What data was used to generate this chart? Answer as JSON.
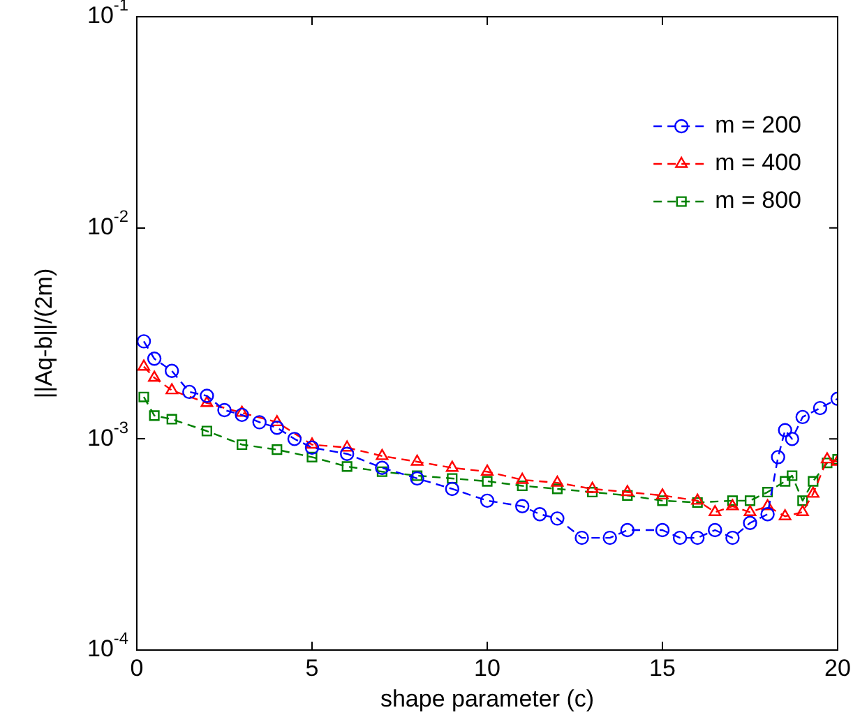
{
  "chart_data": {
    "type": "line",
    "xlabel": "shape parameter (c)",
    "ylabel": "||Aq-b||/(2m)",
    "log": "y",
    "grid": false,
    "legend": "top right",
    "line_style": "dashed",
    "xlim": [
      0,
      20
    ],
    "xticks": [
      0,
      5,
      10,
      15,
      20
    ],
    "ylim": [
      0.0001,
      0.1
    ],
    "yticks": [
      {
        "value": 0.0001,
        "label": "10$^{-4}$"
      },
      {
        "value": 0.001,
        "label": "10$^{-3}$"
      },
      {
        "value": 0.01,
        "label": "10$^{-2}$"
      },
      {
        "value": 0.1,
        "label": "10$^{-1}$"
      }
    ],
    "series": [
      {
        "name": "m = 200",
        "color": "#0000ff",
        "marker": "circle",
        "x": [
          0.2,
          0.5,
          1,
          1.5,
          2,
          2.5,
          3,
          3.5,
          4,
          4.5,
          5,
          6,
          7,
          8,
          9,
          10,
          11,
          11.5,
          12,
          12.7,
          13.5,
          14,
          15,
          15.5,
          16,
          16.5,
          17,
          17.5,
          18,
          18.3,
          18.5,
          18.7,
          19,
          19.5,
          20
        ],
        "values": [
          0.0029,
          0.0024,
          0.0021,
          0.00167,
          0.0016,
          0.00137,
          0.0013,
          0.0012,
          0.00113,
          0.001,
          0.00091,
          0.00085,
          0.00073,
          0.00065,
          0.00058,
          0.00051,
          0.00048,
          0.00044,
          0.00042,
          0.00034,
          0.00034,
          0.00037,
          0.00037,
          0.00034,
          0.00034,
          0.00037,
          0.00034,
          0.0004,
          0.00044,
          0.00082,
          0.0011,
          0.001,
          0.00127,
          0.0014,
          0.00155
        ]
      },
      {
        "name": "m = 400",
        "color": "#ff0000",
        "marker": "triangle",
        "x": [
          0.2,
          0.5,
          1,
          2,
          3,
          4,
          5,
          6,
          7,
          8,
          9,
          10,
          11,
          12,
          13,
          14,
          15,
          16,
          16.5,
          17,
          17.5,
          18,
          18.5,
          19,
          19.3,
          19.7,
          20
        ],
        "values": [
          0.0022,
          0.00195,
          0.0017,
          0.00148,
          0.00133,
          0.0012,
          0.00094,
          0.00091,
          0.00083,
          0.00078,
          0.00073,
          0.0007,
          0.00064,
          0.00062,
          0.00058,
          0.00056,
          0.00054,
          0.00051,
          0.00045,
          0.00048,
          0.00045,
          0.00048,
          0.00043,
          0.00045,
          0.00055,
          0.0008,
          0.00078
        ]
      },
      {
        "name": "m = 800",
        "color": "#008000",
        "marker": "square",
        "x": [
          0.2,
          0.5,
          1,
          2,
          3,
          4,
          5,
          6,
          7,
          8,
          9,
          10,
          11,
          12,
          13,
          14,
          15,
          16,
          17,
          17.5,
          18,
          18.5,
          18.7,
          19,
          19.3,
          19.7,
          20
        ],
        "values": [
          0.00158,
          0.00129,
          0.00124,
          0.00109,
          0.00094,
          0.00089,
          0.00082,
          0.00074,
          0.0007,
          0.00067,
          0.00065,
          0.00063,
          0.0006,
          0.00058,
          0.00056,
          0.00054,
          0.00051,
          0.0005,
          0.00051,
          0.00051,
          0.00056,
          0.00063,
          0.00067,
          0.00051,
          0.00063,
          0.00077,
          0.0008
        ]
      }
    ]
  }
}
